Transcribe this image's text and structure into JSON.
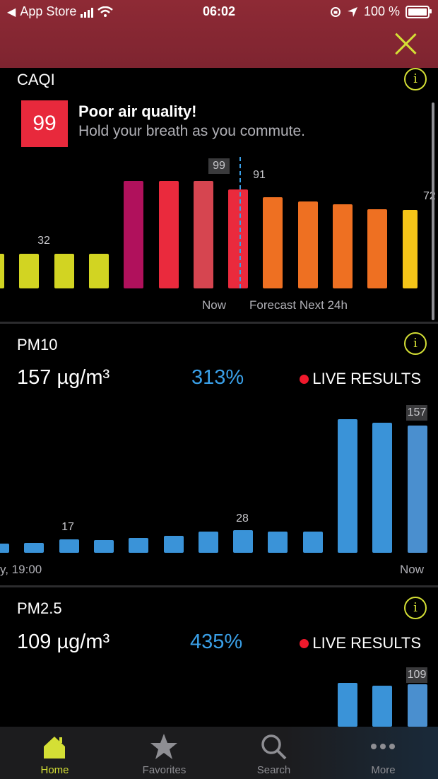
{
  "status": {
    "carrier": "App Store",
    "time": "06:02",
    "battery": "100 %"
  },
  "caqi": {
    "title": "CAQI",
    "value": "99",
    "headline": "Poor air quality!",
    "subline": "Hold your breath as you commute.",
    "bar_labels": [
      "32",
      "99",
      "91",
      "72"
    ],
    "axis_now": "Now",
    "axis_forecast": "Forecast Next 24h",
    "chart_data": {
      "type": "bar",
      "values": [
        32,
        32,
        32,
        32,
        99,
        99,
        99,
        91,
        84,
        80,
        77,
        73,
        72
      ],
      "highlight_index": 6,
      "ylim": [
        0,
        100
      ]
    }
  },
  "pm10": {
    "title": "PM10",
    "value": "157 µg/m³",
    "percent": "313%",
    "live": "LIVE RESULTS",
    "bar_labels": [
      "17",
      "28",
      "157"
    ],
    "axis_start": "y, 19:00",
    "axis_now": "Now",
    "chart_data": {
      "type": "bar",
      "values": [
        11,
        12,
        17,
        16,
        18,
        21,
        26,
        28,
        26,
        26,
        165,
        160,
        157
      ],
      "ylim": [
        0,
        170
      ]
    }
  },
  "pm25": {
    "title": "PM2.5",
    "value": "109 µg/m³",
    "percent": "435%",
    "live": "LIVE RESULTS",
    "bar_labels": [
      "109"
    ],
    "chart_data": {
      "type": "bar",
      "values": [
        112,
        106,
        109
      ],
      "ylim": [
        0,
        120
      ]
    }
  },
  "tabs": [
    {
      "label": "Home",
      "icon": "home-icon",
      "active": true
    },
    {
      "label": "Favorites",
      "icon": "star-icon",
      "active": false
    },
    {
      "label": "Search",
      "icon": "search-icon",
      "active": false
    },
    {
      "label": "More",
      "icon": "more-icon",
      "active": false
    }
  ],
  "colors": {
    "accent": "#d4df35",
    "blue": "#3a93d8",
    "red": "#e8293c"
  }
}
